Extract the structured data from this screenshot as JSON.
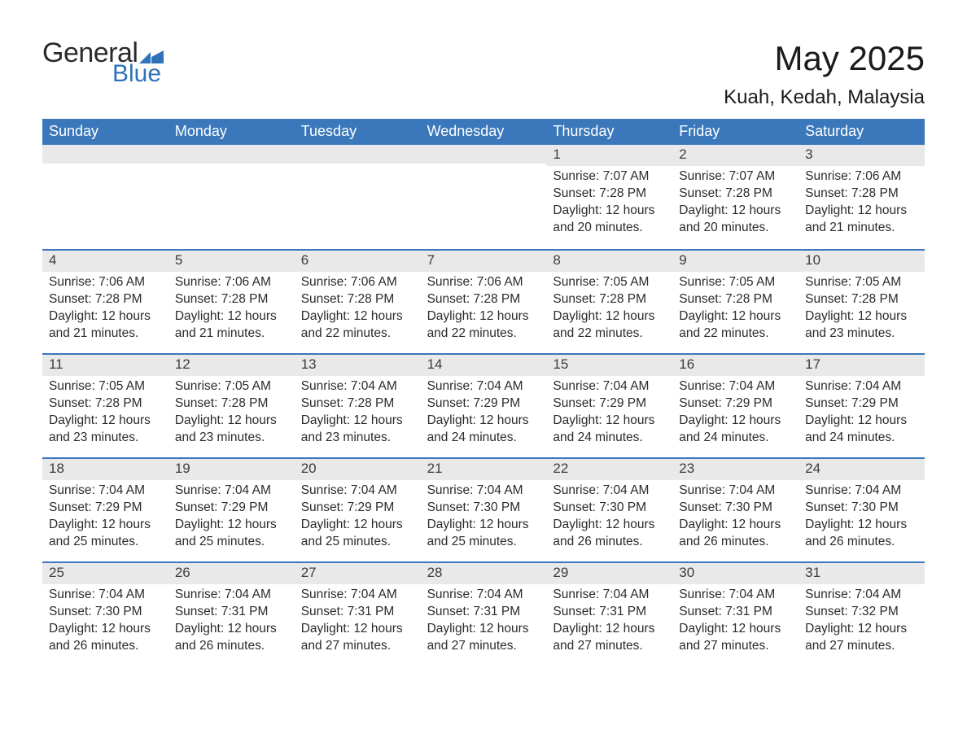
{
  "logo": {
    "word1": "General",
    "word2": "Blue",
    "flag_color": "#2f72b8"
  },
  "title": "May 2025",
  "location": "Kuah, Kedah, Malaysia",
  "colors": {
    "header_bg": "#3a78bb",
    "header_text": "#ffffff",
    "band_bg": "#e9e9e9",
    "border": "#3a78bb",
    "text": "#2b2b2b",
    "bg": "#ffffff"
  },
  "fonts": {
    "title_size": 42,
    "location_size": 24,
    "header_size": 18,
    "body_size": 15.5
  },
  "day_headers": [
    "Sunday",
    "Monday",
    "Tuesday",
    "Wednesday",
    "Thursday",
    "Friday",
    "Saturday"
  ],
  "labels": {
    "sunrise": "Sunrise: ",
    "sunset": "Sunset: ",
    "daylight": "Daylight: "
  },
  "weeks": [
    [
      null,
      null,
      null,
      null,
      {
        "n": "1",
        "sunrise": "7:07 AM",
        "sunset": "7:28 PM",
        "daylight": "12 hours and 20 minutes."
      },
      {
        "n": "2",
        "sunrise": "7:07 AM",
        "sunset": "7:28 PM",
        "daylight": "12 hours and 20 minutes."
      },
      {
        "n": "3",
        "sunrise": "7:06 AM",
        "sunset": "7:28 PM",
        "daylight": "12 hours and 21 minutes."
      }
    ],
    [
      {
        "n": "4",
        "sunrise": "7:06 AM",
        "sunset": "7:28 PM",
        "daylight": "12 hours and 21 minutes."
      },
      {
        "n": "5",
        "sunrise": "7:06 AM",
        "sunset": "7:28 PM",
        "daylight": "12 hours and 21 minutes."
      },
      {
        "n": "6",
        "sunrise": "7:06 AM",
        "sunset": "7:28 PM",
        "daylight": "12 hours and 22 minutes."
      },
      {
        "n": "7",
        "sunrise": "7:06 AM",
        "sunset": "7:28 PM",
        "daylight": "12 hours and 22 minutes."
      },
      {
        "n": "8",
        "sunrise": "7:05 AM",
        "sunset": "7:28 PM",
        "daylight": "12 hours and 22 minutes."
      },
      {
        "n": "9",
        "sunrise": "7:05 AM",
        "sunset": "7:28 PM",
        "daylight": "12 hours and 22 minutes."
      },
      {
        "n": "10",
        "sunrise": "7:05 AM",
        "sunset": "7:28 PM",
        "daylight": "12 hours and 23 minutes."
      }
    ],
    [
      {
        "n": "11",
        "sunrise": "7:05 AM",
        "sunset": "7:28 PM",
        "daylight": "12 hours and 23 minutes."
      },
      {
        "n": "12",
        "sunrise": "7:05 AM",
        "sunset": "7:28 PM",
        "daylight": "12 hours and 23 minutes."
      },
      {
        "n": "13",
        "sunrise": "7:04 AM",
        "sunset": "7:28 PM",
        "daylight": "12 hours and 23 minutes."
      },
      {
        "n": "14",
        "sunrise": "7:04 AM",
        "sunset": "7:29 PM",
        "daylight": "12 hours and 24 minutes."
      },
      {
        "n": "15",
        "sunrise": "7:04 AM",
        "sunset": "7:29 PM",
        "daylight": "12 hours and 24 minutes."
      },
      {
        "n": "16",
        "sunrise": "7:04 AM",
        "sunset": "7:29 PM",
        "daylight": "12 hours and 24 minutes."
      },
      {
        "n": "17",
        "sunrise": "7:04 AM",
        "sunset": "7:29 PM",
        "daylight": "12 hours and 24 minutes."
      }
    ],
    [
      {
        "n": "18",
        "sunrise": "7:04 AM",
        "sunset": "7:29 PM",
        "daylight": "12 hours and 25 minutes."
      },
      {
        "n": "19",
        "sunrise": "7:04 AM",
        "sunset": "7:29 PM",
        "daylight": "12 hours and 25 minutes."
      },
      {
        "n": "20",
        "sunrise": "7:04 AM",
        "sunset": "7:29 PM",
        "daylight": "12 hours and 25 minutes."
      },
      {
        "n": "21",
        "sunrise": "7:04 AM",
        "sunset": "7:30 PM",
        "daylight": "12 hours and 25 minutes."
      },
      {
        "n": "22",
        "sunrise": "7:04 AM",
        "sunset": "7:30 PM",
        "daylight": "12 hours and 26 minutes."
      },
      {
        "n": "23",
        "sunrise": "7:04 AM",
        "sunset": "7:30 PM",
        "daylight": "12 hours and 26 minutes."
      },
      {
        "n": "24",
        "sunrise": "7:04 AM",
        "sunset": "7:30 PM",
        "daylight": "12 hours and 26 minutes."
      }
    ],
    [
      {
        "n": "25",
        "sunrise": "7:04 AM",
        "sunset": "7:30 PM",
        "daylight": "12 hours and 26 minutes."
      },
      {
        "n": "26",
        "sunrise": "7:04 AM",
        "sunset": "7:31 PM",
        "daylight": "12 hours and 26 minutes."
      },
      {
        "n": "27",
        "sunrise": "7:04 AM",
        "sunset": "7:31 PM",
        "daylight": "12 hours and 27 minutes."
      },
      {
        "n": "28",
        "sunrise": "7:04 AM",
        "sunset": "7:31 PM",
        "daylight": "12 hours and 27 minutes."
      },
      {
        "n": "29",
        "sunrise": "7:04 AM",
        "sunset": "7:31 PM",
        "daylight": "12 hours and 27 minutes."
      },
      {
        "n": "30",
        "sunrise": "7:04 AM",
        "sunset": "7:31 PM",
        "daylight": "12 hours and 27 minutes."
      },
      {
        "n": "31",
        "sunrise": "7:04 AM",
        "sunset": "7:32 PM",
        "daylight": "12 hours and 27 minutes."
      }
    ]
  ]
}
